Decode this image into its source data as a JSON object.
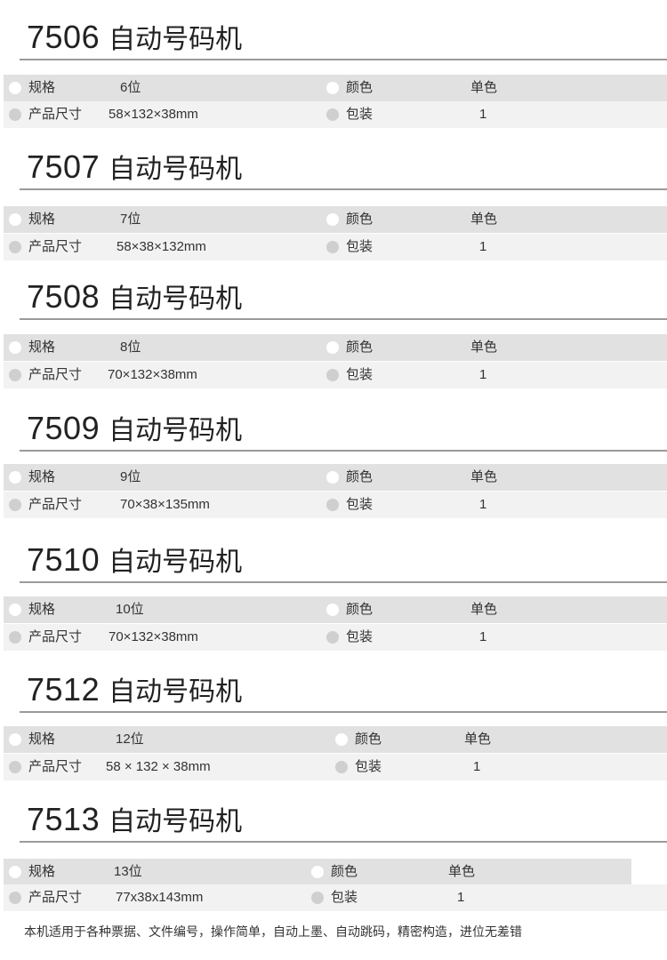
{
  "labels": {
    "spec": "规格",
    "color": "颜色",
    "size": "产品尺寸",
    "pack": "包装"
  },
  "products": [
    {
      "model": "7506",
      "name": "自动号码机",
      "spec": "6位",
      "color": "单色",
      "size": "58×132×38mm",
      "pack": "1"
    },
    {
      "model": "7507",
      "name": "自动号码机",
      "spec": "7位",
      "color": "单色",
      "size": "58×38×132mm",
      "pack": "1"
    },
    {
      "model": "7508",
      "name": "自动号码机",
      "spec": "8位",
      "color": "单色",
      "size": "70×132×38mm",
      "pack": "1"
    },
    {
      "model": "7509",
      "name": "自动号码机",
      "spec": "9位",
      "color": "单色",
      "size": "70×38×135mm",
      "pack": "1"
    },
    {
      "model": "7510",
      "name": "自动号码机",
      "spec": "10位",
      "color": "单色",
      "size": "70×132×38mm",
      "pack": "1"
    },
    {
      "model": "7512",
      "name": "自动号码机",
      "spec": "12位",
      "color": "单色",
      "size": "58 × 132 × 38mm",
      "pack": "1"
    },
    {
      "model": "7513",
      "name": "自动号码机",
      "spec": "13位",
      "color": "单色",
      "size": "77x38x143mm",
      "pack": "1"
    }
  ],
  "footer": "本机适用于各种票据、文件编号，操作简单，自动上墨、自动跳码，精密构造，进位无差错",
  "colors": {
    "row_dark": "#e1e1e1",
    "row_light": "#f2f2f2",
    "rule": "#9a9a9a"
  }
}
